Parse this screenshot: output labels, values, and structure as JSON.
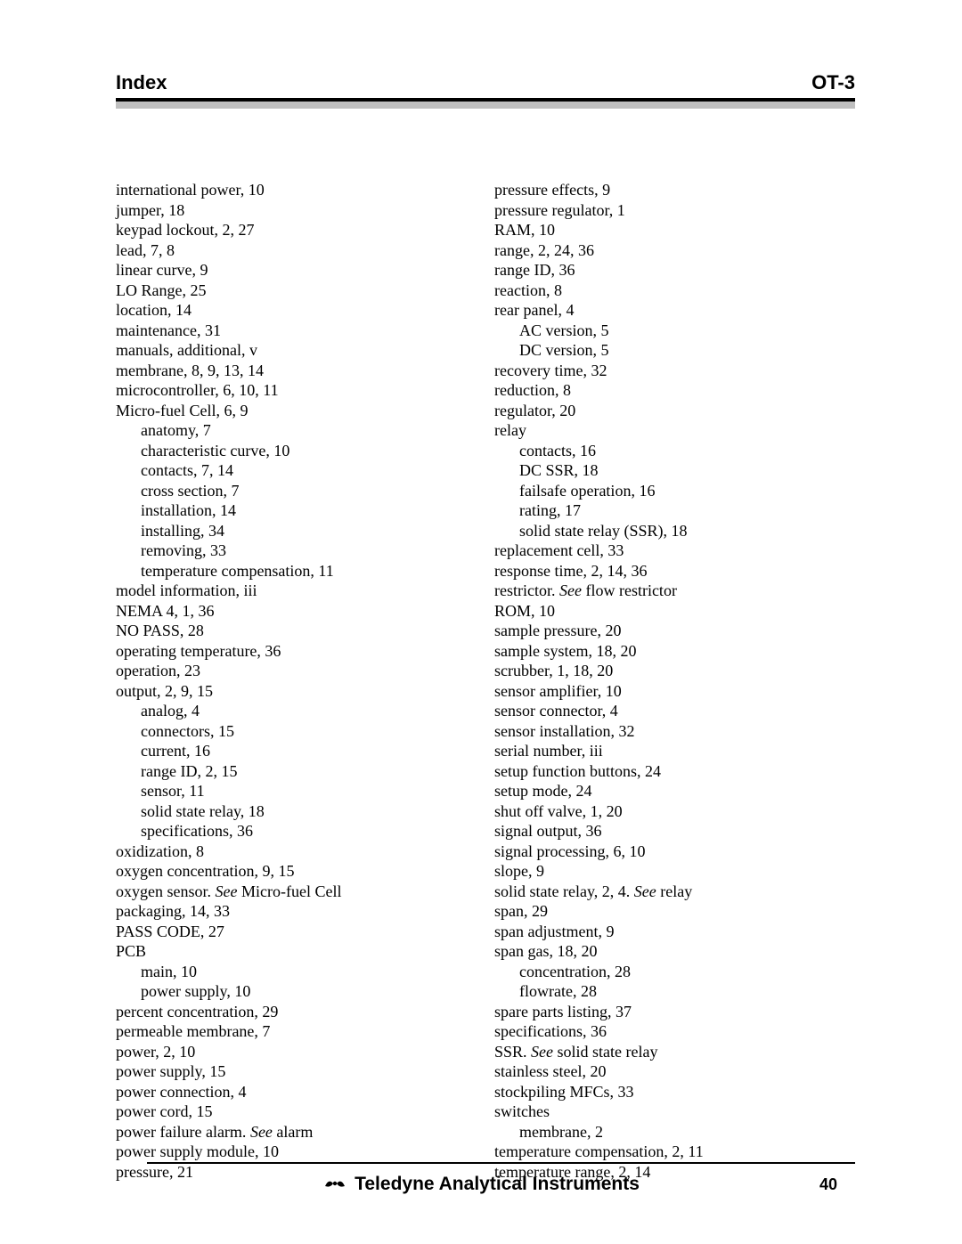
{
  "header": {
    "left": "Index",
    "right": "OT-3"
  },
  "footer": {
    "brand": "Teledyne Analytical Instruments",
    "page": "40"
  },
  "left_col": [
    {
      "t": "international power, 10"
    },
    {
      "t": "jumper, 18"
    },
    {
      "t": "keypad lockout, 2, 27"
    },
    {
      "t": "lead, 7, 8"
    },
    {
      "t": "linear curve, 9"
    },
    {
      "t": "LO Range, 25"
    },
    {
      "t": "location, 14"
    },
    {
      "t": "maintenance, 31"
    },
    {
      "t": "manuals, additional, v"
    },
    {
      "t": "membrane, 8, 9, 13, 14"
    },
    {
      "t": "microcontroller, 6, 10, 11"
    },
    {
      "t": "Micro-fuel Cell, 6, 9"
    },
    {
      "t": "anatomy, 7",
      "sub": true
    },
    {
      "t": "characteristic curve, 10",
      "sub": true
    },
    {
      "t": "contacts, 7, 14",
      "sub": true
    },
    {
      "t": "cross section, 7",
      "sub": true
    },
    {
      "t": "installation, 14",
      "sub": true
    },
    {
      "t": "installing, 34",
      "sub": true
    },
    {
      "t": "removing, 33",
      "sub": true
    },
    {
      "t": "temperature compensation, 11",
      "sub": true
    },
    {
      "t": "model information, iii"
    },
    {
      "t": "NEMA 4, 1, 36"
    },
    {
      "t": "NO PASS, 28"
    },
    {
      "t": "operating temperature, 36"
    },
    {
      "t": "operation, 23"
    },
    {
      "t": "output, 2, 9, 15"
    },
    {
      "t": "analog, 4",
      "sub": true
    },
    {
      "t": "connectors, 15",
      "sub": true
    },
    {
      "t": "current, 16",
      "sub": true
    },
    {
      "t": "range ID, 2, 15",
      "sub": true
    },
    {
      "t": "sensor, 11",
      "sub": true
    },
    {
      "t": "solid state relay, 18",
      "sub": true
    },
    {
      "t": "specifications, 36",
      "sub": true
    },
    {
      "t": "oxidization, 8"
    },
    {
      "t": "oxygen concentration, 9, 15"
    },
    {
      "pre": "oxygen sensor. ",
      "see": "See",
      "post": " Micro-fuel Cell"
    },
    {
      "t": "packaging, 14, 33"
    },
    {
      "t": "PASS CODE, 27"
    },
    {
      "t": "PCB"
    },
    {
      "t": "main, 10",
      "sub": true
    },
    {
      "t": "power supply, 10",
      "sub": true
    },
    {
      "t": "percent concentration, 29"
    },
    {
      "t": "permeable membrane, 7"
    },
    {
      "t": "power, 2, 10"
    },
    {
      "t": "power supply, 15"
    },
    {
      "t": "power connection, 4"
    },
    {
      "t": "power cord, 15"
    },
    {
      "pre": "power failure alarm. ",
      "see": "See",
      "post": " alarm"
    },
    {
      "t": "power supply module, 10"
    },
    {
      "t": "pressure, 21"
    }
  ],
  "right_col": [
    {
      "t": "pressure effects, 9"
    },
    {
      "t": "pressure regulator, 1"
    },
    {
      "t": "RAM, 10"
    },
    {
      "t": "range, 2, 24, 36"
    },
    {
      "t": "range ID, 36"
    },
    {
      "t": "reaction, 8"
    },
    {
      "t": "rear panel, 4"
    },
    {
      "t": "AC version, 5",
      "sub": true
    },
    {
      "t": "DC version, 5",
      "sub": true
    },
    {
      "t": "recovery time, 32"
    },
    {
      "t": "reduction, 8"
    },
    {
      "t": "regulator, 20"
    },
    {
      "t": "relay"
    },
    {
      "t": "contacts, 16",
      "sub": true
    },
    {
      "t": "DC SSR, 18",
      "sub": true
    },
    {
      "t": "failsafe operation, 16",
      "sub": true
    },
    {
      "t": "rating, 17",
      "sub": true
    },
    {
      "t": "solid state relay (SSR), 18",
      "sub": true
    },
    {
      "t": "replacement cell, 33"
    },
    {
      "t": "response time, 2, 14, 36"
    },
    {
      "pre": "restrictor. ",
      "see": "See",
      "post": " flow restrictor"
    },
    {
      "t": "ROM, 10"
    },
    {
      "t": "sample pressure, 20"
    },
    {
      "t": "sample system, 18, 20"
    },
    {
      "t": "scrubber, 1, 18, 20"
    },
    {
      "t": "sensor amplifier, 10"
    },
    {
      "t": "sensor connector, 4"
    },
    {
      "t": "sensor installation, 32"
    },
    {
      "t": "serial number, iii"
    },
    {
      "t": "setup function buttons, 24"
    },
    {
      "t": "setup mode, 24"
    },
    {
      "t": "shut off valve, 1, 20"
    },
    {
      "t": "signal output, 36"
    },
    {
      "t": "signal processing, 6, 10"
    },
    {
      "t": "slope, 9"
    },
    {
      "pre": "solid state relay, 2, 4. ",
      "see": "See",
      "post": " relay"
    },
    {
      "t": "span, 29"
    },
    {
      "t": "span adjustment, 9"
    },
    {
      "t": "span gas, 18, 20"
    },
    {
      "t": "concentration, 28",
      "sub": true
    },
    {
      "t": "flowrate, 28",
      "sub": true
    },
    {
      "t": "spare parts listing, 37"
    },
    {
      "t": "specifications, 36"
    },
    {
      "pre": "SSR. ",
      "see": "See",
      "post": " solid state relay"
    },
    {
      "t": "stainless steel, 20"
    },
    {
      "t": "stockpiling MFCs, 33"
    },
    {
      "t": "switches"
    },
    {
      "t": "membrane, 2",
      "sub": true
    },
    {
      "t": "temperature compensation, 2, 11"
    },
    {
      "t": "temperature range, 2, 14"
    }
  ]
}
